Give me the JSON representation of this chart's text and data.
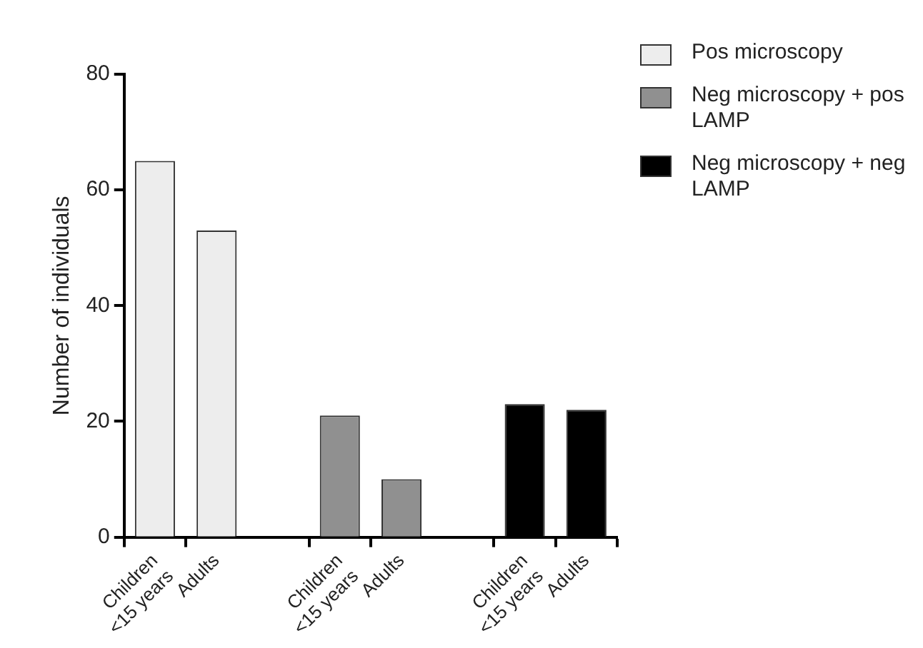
{
  "chart_data": {
    "type": "bar",
    "ylabel": "Number of individuals",
    "categories": [
      "Children <15 years",
      "Adults",
      null,
      "Children <15 years",
      "Adults",
      null,
      "Children <15 years",
      "Adults"
    ],
    "series": [
      {
        "name": "Pos microscopy",
        "color": "#ededed",
        "values": [
          65,
          53,
          null,
          null,
          null,
          null,
          null,
          null
        ]
      },
      {
        "name": "Neg microscopy + pos LAMP",
        "color": "#909090",
        "values": [
          null,
          null,
          null,
          21,
          10,
          null,
          null,
          null
        ]
      },
      {
        "name": "Neg microscopy + neg LAMP",
        "color": "#000000",
        "values": [
          null,
          null,
          null,
          null,
          null,
          null,
          23,
          22
        ]
      }
    ],
    "ylim": [
      0,
      80
    ],
    "yticks": [
      0,
      20,
      40,
      60,
      80
    ],
    "grid": false,
    "legend": "top right"
  }
}
